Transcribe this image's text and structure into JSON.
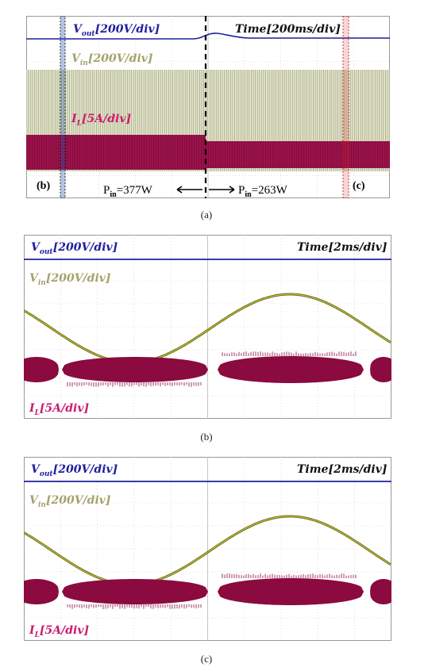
{
  "panels": [
    {
      "id": "a",
      "caption": "(a)",
      "vout_label": {
        "sym": "V",
        "sub": "out",
        "scale": "[200V/div]"
      },
      "vin_label": {
        "sym": "V",
        "sub": "in",
        "scale": "[200V/div]"
      },
      "il_label": {
        "sym": "I",
        "sub": "L",
        "scale": "[5A/div]"
      },
      "time_label": "Time[200ms/div]",
      "marker_b": "(b)",
      "marker_c": "(c)",
      "pin_left": {
        "sym": "P",
        "sub": "in",
        "value": "=377W"
      },
      "pin_right": {
        "sym": "P",
        "sub": "in",
        "value": "=263W"
      }
    },
    {
      "id": "b",
      "caption": "(b)",
      "vout_label": {
        "sym": "V",
        "sub": "out",
        "scale": "[200V/div]"
      },
      "vin_label": {
        "sym": "V",
        "sub": "in",
        "scale": "[200V/div]"
      },
      "il_label": {
        "sym": "I",
        "sub": "L",
        "scale": "[5A/div]"
      },
      "time_label": "Time[2ms/div]"
    },
    {
      "id": "c",
      "caption": "(c)",
      "vout_label": {
        "sym": "V",
        "sub": "out",
        "scale": "[200V/div]"
      },
      "vin_label": {
        "sym": "V",
        "sub": "in",
        "scale": "[200V/div]"
      },
      "il_label": {
        "sym": "I",
        "sub": "L",
        "scale": "[5A/div]"
      },
      "time_label": "Time[2ms/div]"
    }
  ],
  "colors": {
    "vout": "#1f1fa0",
    "vin": "#a3a36b",
    "vin_wave": "#6e6e14",
    "il": "#8b0a3f",
    "il_label": "#cc1a6e",
    "grid": "#c8c8c8",
    "marker_b": "#2a5aa8",
    "marker_c": "#cc2222"
  }
}
